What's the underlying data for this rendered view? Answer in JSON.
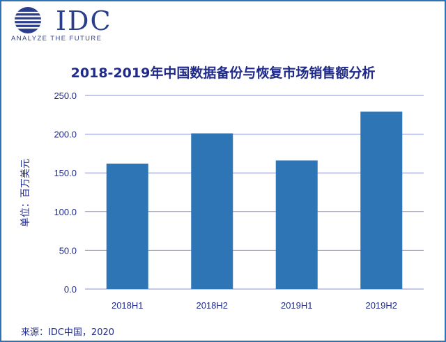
{
  "header": {
    "logo_text": "IDC",
    "tagline": "ANALYZE THE FUTURE"
  },
  "chart_data": {
    "type": "bar",
    "title": "2018-2019年中国数据备份与恢复市场销售额分析",
    "ylabel": "单位：百万美元",
    "xlabel": "",
    "categories": [
      "2018H1",
      "2018H2",
      "2019H1",
      "2019H2"
    ],
    "values": [
      162.0,
      201.0,
      166.0,
      229.0
    ],
    "ylim": [
      0,
      250
    ],
    "yticks": [
      "0.0",
      "50.0",
      "100.0",
      "150.0",
      "200.0",
      "250.0"
    ],
    "grid": true,
    "bar_color": "#2e75b6",
    "grid_color": "#8a8fd6"
  },
  "footer": {
    "source": "来源：IDC中国，2020"
  }
}
